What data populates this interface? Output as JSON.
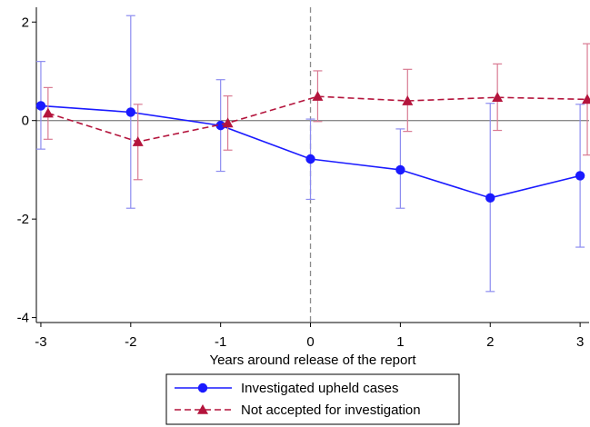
{
  "chart_data": {
    "type": "line",
    "xlabel": "Years around release of the report",
    "ylabel": "",
    "x": [
      -3,
      -2,
      -1,
      0,
      1,
      2,
      3
    ],
    "xlim": [
      -3.05,
      3.1
    ],
    "ylim": [
      -4.1,
      2.3
    ],
    "xticks": [
      -3,
      -2,
      -1,
      0,
      1,
      2,
      3
    ],
    "xtick_labels": [
      "-3",
      "-2",
      "-1",
      "0",
      "1",
      "2",
      "3"
    ],
    "yticks": [
      -4,
      -2,
      0,
      2
    ],
    "ytick_labels": [
      "-4",
      "-2",
      "0",
      "2"
    ],
    "reference_lines": {
      "horizontal_y": 0,
      "vertical_x": 0
    },
    "grid": false,
    "legend_position": "bottom",
    "series": [
      {
        "name": "Investigated upheld cases",
        "color": "#1a1aff",
        "ci_color": "#8c8cf0",
        "marker": "circle",
        "line_style": "solid",
        "x": [
          -3,
          -2,
          -1,
          0,
          1,
          2,
          3
        ],
        "values": [
          0.3,
          0.17,
          -0.1,
          -0.78,
          -1.0,
          -1.57,
          -1.12
        ],
        "ci_low": [
          -0.58,
          -1.78,
          -1.03,
          -1.6,
          -1.78,
          -3.47,
          -2.57
        ],
        "ci_high": [
          1.2,
          2.13,
          0.83,
          0.03,
          -0.17,
          0.35,
          0.33
        ]
      },
      {
        "name": "Not accepted for investigation",
        "color": "#b4143c",
        "ci_color": "#d97a92",
        "marker": "triangle",
        "line_style": "dashed",
        "x": [
          -2.92,
          -1.92,
          -0.92,
          0.08,
          1.08,
          2.08,
          3.08
        ],
        "values": [
          0.15,
          -0.43,
          -0.05,
          0.49,
          0.4,
          0.47,
          0.43
        ],
        "ci_low": [
          -0.38,
          -1.2,
          -0.6,
          -0.02,
          -0.22,
          -0.2,
          -0.7
        ],
        "ci_high": [
          0.67,
          0.33,
          0.5,
          1.01,
          1.04,
          1.15,
          1.56
        ]
      }
    ]
  }
}
